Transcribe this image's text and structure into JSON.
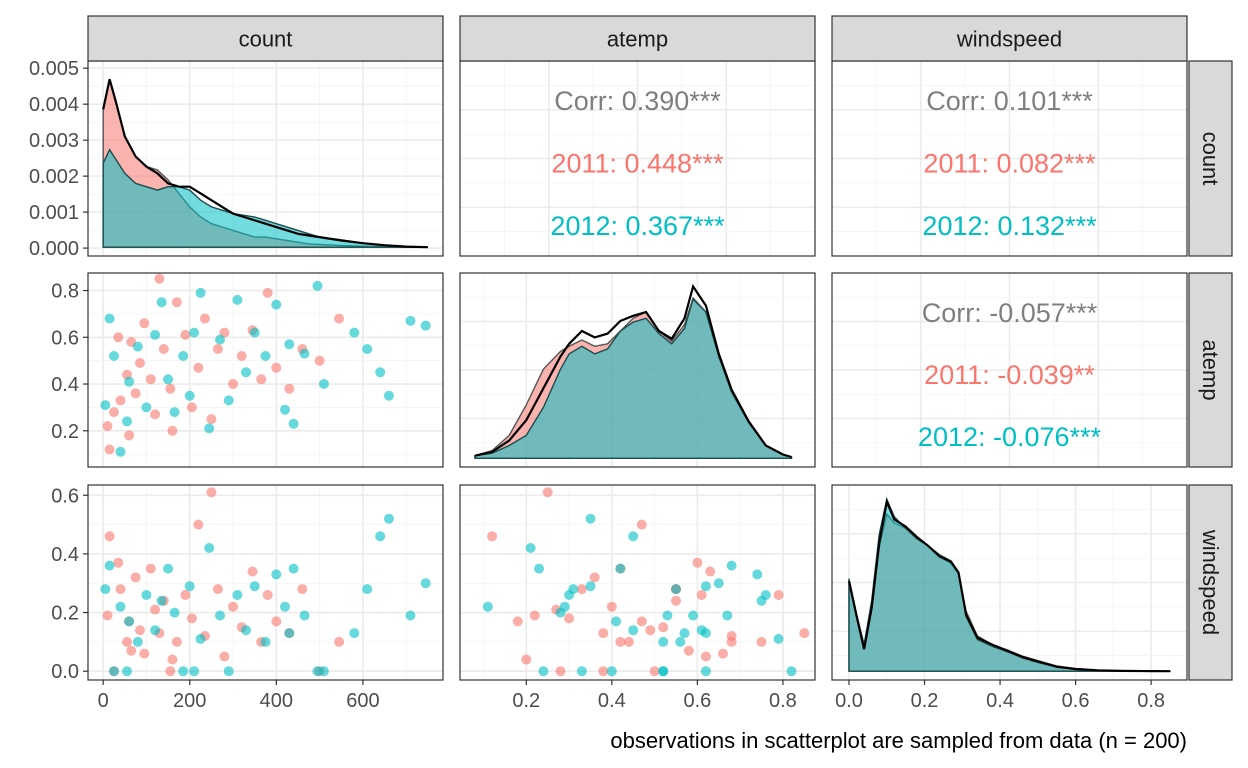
{
  "chart_data": {
    "type": "scatter",
    "caption": "observations in scatterplot are sampled from data (n = 200)",
    "variables": [
      "count",
      "atemp",
      "windspeed"
    ],
    "groups": [
      {
        "name": "2011",
        "color": "#F8766D"
      },
      {
        "name": "2012",
        "color": "#00BFC4"
      }
    ],
    "axes": {
      "count": {
        "range": [
          -35,
          785
        ],
        "ticks": [
          0,
          200,
          400,
          600
        ],
        "tick_labels": [
          "0",
          "200",
          "400",
          "600"
        ]
      },
      "atemp": {
        "range": [
          0.045,
          0.875
        ],
        "ticks": [
          0.2,
          0.4,
          0.6,
          0.8
        ],
        "tick_labels": [
          "0.2",
          "0.4",
          "0.6",
          "0.8"
        ]
      },
      "windspeed": {
        "range": [
          -0.03,
          0.635
        ],
        "ticks": [
          0.0,
          0.2,
          0.4,
          0.6
        ],
        "tick_labels": [
          "0.0",
          "0.2",
          "0.4",
          "0.6"
        ]
      },
      "windspeed_x": {
        "range": [
          -0.045,
          0.895
        ],
        "ticks": [
          0.0,
          0.2,
          0.4,
          0.6,
          0.8
        ],
        "tick_labels": [
          "0.0",
          "0.2",
          "0.4",
          "0.6",
          "0.8"
        ]
      },
      "count_density": {
        "range": [
          -0.00022,
          0.0052
        ],
        "ticks": [
          0,
          0.001,
          0.002,
          0.003,
          0.004,
          0.005
        ],
        "tick_labels": [
          "0.000",
          "0.001",
          "0.002",
          "0.003",
          "0.004",
          "0.005"
        ]
      }
    },
    "correlations": [
      {
        "pair": "count-atemp",
        "lines": [
          {
            "label": "Corr: 0.390***",
            "color": "#7f7f7f"
          },
          {
            "label": "2011: 0.448***",
            "color": "#F8766D"
          },
          {
            "label": "2012: 0.367***",
            "color": "#00BFC4"
          }
        ]
      },
      {
        "pair": "count-windspeed",
        "lines": [
          {
            "label": "Corr: 0.101***",
            "color": "#7f7f7f"
          },
          {
            "label": "2011: 0.082***",
            "color": "#F8766D"
          },
          {
            "label": "2012: 0.132***",
            "color": "#00BFC4"
          }
        ]
      },
      {
        "pair": "atemp-windspeed",
        "lines": [
          {
            "label": "Corr: -0.057***",
            "color": "#7f7f7f"
          },
          {
            "label": "2011: -0.039**",
            "color": "#F8766D"
          },
          {
            "label": "2012: -0.076***",
            "color": "#00BFC4"
          }
        ]
      }
    ],
    "densities": {
      "count": {
        "x": [
          0,
          15,
          30,
          50,
          75,
          100,
          125,
          150,
          175,
          200,
          225,
          250,
          275,
          300,
          325,
          350,
          375,
          400,
          425,
          450,
          475,
          500,
          550,
          600,
          650,
          700,
          750
        ],
        "2011": [
          0.0041,
          0.005,
          0.0043,
          0.0033,
          0.0027,
          0.0024,
          0.0023,
          0.002,
          0.0016,
          0.0012,
          0.0009,
          0.0007,
          0.0006,
          0.0005,
          0.0004,
          0.0003,
          0.0003,
          0.00025,
          0.0002,
          0.00015,
          0.0001,
          8e-05,
          5e-05,
          3e-05,
          2e-05,
          1e-05,
          0
        ],
        "2012": [
          0.0025,
          0.0029,
          0.0026,
          0.0022,
          0.0019,
          0.0018,
          0.0017,
          0.0018,
          0.0018,
          0.0017,
          0.0014,
          0.0012,
          0.0011,
          0.001,
          0.00095,
          0.0009,
          0.0008,
          0.0007,
          0.0006,
          0.0005,
          0.0004,
          0.0003,
          0.00022,
          0.00012,
          6e-05,
          2e-05,
          0
        ],
        "overall": [
          0.0041,
          0.005,
          0.0043,
          0.0033,
          0.0027,
          0.0024,
          0.0022,
          0.0019,
          0.0018,
          0.0018,
          0.0016,
          0.0014,
          0.0012,
          0.001,
          0.0009,
          0.0008,
          0.0007,
          0.0006,
          0.0005,
          0.0004,
          0.00035,
          0.0003,
          0.0002,
          0.00012,
          6e-05,
          2e-05,
          0
        ]
      },
      "atemp": {
        "x": [
          0.08,
          0.12,
          0.16,
          0.2,
          0.24,
          0.28,
          0.3,
          0.33,
          0.36,
          0.39,
          0.42,
          0.45,
          0.48,
          0.51,
          0.54,
          0.57,
          0.59,
          0.62,
          0.65,
          0.68,
          0.72,
          0.76,
          0.8,
          0.82
        ],
        "2011": [
          0.02,
          0.06,
          0.18,
          0.42,
          0.7,
          0.84,
          0.88,
          0.93,
          0.88,
          0.9,
          1.0,
          1.1,
          1.15,
          1.0,
          0.92,
          1.05,
          1.26,
          1.15,
          0.8,
          0.52,
          0.28,
          0.1,
          0.03,
          0.01
        ],
        "2012": [
          0.02,
          0.04,
          0.1,
          0.18,
          0.4,
          0.7,
          0.82,
          0.88,
          0.82,
          0.86,
          1.0,
          1.07,
          1.1,
          0.98,
          0.9,
          1.02,
          1.25,
          1.15,
          0.8,
          0.52,
          0.28,
          0.1,
          0.03,
          0.01
        ],
        "overall": [
          0.02,
          0.05,
          0.14,
          0.3,
          0.55,
          0.8,
          0.9,
          1.0,
          0.95,
          0.98,
          1.08,
          1.12,
          1.15,
          1.0,
          0.94,
          1.1,
          1.35,
          1.2,
          0.82,
          0.54,
          0.29,
          0.1,
          0.03,
          0.01
        ]
      },
      "windspeed": {
        "x": [
          0.0,
          0.02,
          0.04,
          0.06,
          0.08,
          0.1,
          0.12,
          0.15,
          0.18,
          0.21,
          0.24,
          0.27,
          0.29,
          0.31,
          0.34,
          0.38,
          0.42,
          0.46,
          0.5,
          0.55,
          0.6,
          0.66,
          0.72,
          0.8,
          0.85
        ],
        "2011": [
          1.0,
          0.62,
          0.3,
          0.7,
          1.4,
          1.78,
          1.68,
          1.62,
          1.52,
          1.42,
          1.3,
          1.22,
          1.1,
          0.68,
          0.4,
          0.3,
          0.24,
          0.17,
          0.12,
          0.06,
          0.03,
          0.01,
          0.005,
          0.002,
          0.0
        ],
        "2012": [
          1.05,
          0.65,
          0.3,
          0.8,
          1.55,
          1.95,
          1.75,
          1.62,
          1.5,
          1.42,
          1.32,
          1.25,
          1.12,
          0.62,
          0.36,
          0.28,
          0.22,
          0.15,
          0.1,
          0.05,
          0.02,
          0.008,
          0.004,
          0.001,
          0.0
        ],
        "overall": [
          1.02,
          0.63,
          0.25,
          0.72,
          1.45,
          1.92,
          1.72,
          1.64,
          1.52,
          1.42,
          1.3,
          1.24,
          1.12,
          0.64,
          0.38,
          0.3,
          0.23,
          0.16,
          0.11,
          0.05,
          0.025,
          0.01,
          0.004,
          0.001,
          0.0
        ]
      }
    },
    "points": [
      {
        "group": "2011",
        "count": 10,
        "atemp": 0.22,
        "windspeed": 0.19
      },
      {
        "group": "2011",
        "count": 25,
        "atemp": 0.28,
        "windspeed": 0.0
      },
      {
        "group": "2011",
        "count": 40,
        "atemp": 0.33,
        "windspeed": 0.28
      },
      {
        "group": "2011",
        "count": 55,
        "atemp": 0.44,
        "windspeed": 0.1
      },
      {
        "group": "2011",
        "count": 60,
        "atemp": 0.18,
        "windspeed": 0.17
      },
      {
        "group": "2011",
        "count": 75,
        "atemp": 0.36,
        "windspeed": 0.32
      },
      {
        "group": "2011",
        "count": 85,
        "atemp": 0.49,
        "windspeed": 0.14
      },
      {
        "group": "2011",
        "count": 95,
        "atemp": 0.66,
        "windspeed": 0.06
      },
      {
        "group": "2011",
        "count": 110,
        "atemp": 0.42,
        "windspeed": 0.35
      },
      {
        "group": "2011",
        "count": 120,
        "atemp": 0.27,
        "windspeed": 0.21
      },
      {
        "group": "2011",
        "count": 130,
        "atemp": 0.85,
        "windspeed": 0.13
      },
      {
        "group": "2011",
        "count": 140,
        "atemp": 0.55,
        "windspeed": 0.24
      },
      {
        "group": "2011",
        "count": 155,
        "atemp": 0.38,
        "windspeed": 0.0
      },
      {
        "group": "2011",
        "count": 170,
        "atemp": 0.75,
        "windspeed": 0.1
      },
      {
        "group": "2011",
        "count": 190,
        "atemp": 0.61,
        "windspeed": 0.26
      },
      {
        "group": "2011",
        "count": 205,
        "atemp": 0.3,
        "windspeed": 0.18
      },
      {
        "group": "2011",
        "count": 220,
        "atemp": 0.47,
        "windspeed": 0.5
      },
      {
        "group": "2011",
        "count": 235,
        "atemp": 0.68,
        "windspeed": 0.12
      },
      {
        "group": "2011",
        "count": 250,
        "atemp": 0.25,
        "windspeed": 0.61
      },
      {
        "group": "2011",
        "count": 265,
        "atemp": 0.55,
        "windspeed": 0.28
      },
      {
        "group": "2011",
        "count": 280,
        "atemp": 0.62,
        "windspeed": 0.05
      },
      {
        "group": "2011",
        "count": 300,
        "atemp": 0.4,
        "windspeed": 0.22
      },
      {
        "group": "2011",
        "count": 320,
        "atemp": 0.52,
        "windspeed": 0.15
      },
      {
        "group": "2011",
        "count": 345,
        "atemp": 0.63,
        "windspeed": 0.34
      },
      {
        "group": "2011",
        "count": 365,
        "atemp": 0.42,
        "windspeed": 0.1
      },
      {
        "group": "2011",
        "count": 380,
        "atemp": 0.79,
        "windspeed": 0.26
      },
      {
        "group": "2011",
        "count": 400,
        "atemp": 0.47,
        "windspeed": 0.17
      },
      {
        "group": "2011",
        "count": 430,
        "atemp": 0.38,
        "windspeed": 0.13
      },
      {
        "group": "2011",
        "count": 460,
        "atemp": 0.55,
        "windspeed": 0.28
      },
      {
        "group": "2011",
        "count": 500,
        "atemp": 0.5,
        "windspeed": 0.0
      },
      {
        "group": "2011",
        "count": 545,
        "atemp": 0.68,
        "windspeed": 0.1
      },
      {
        "group": "2011",
        "count": 15,
        "atemp": 0.12,
        "windspeed": 0.46
      },
      {
        "group": "2011",
        "count": 35,
        "atemp": 0.6,
        "windspeed": 0.37
      },
      {
        "group": "2011",
        "count": 65,
        "atemp": 0.58,
        "windspeed": 0.07
      },
      {
        "group": "2011",
        "count": 160,
        "atemp": 0.2,
        "windspeed": 0.04
      },
      {
        "group": "2012",
        "count": 5,
        "atemp": 0.31,
        "windspeed": 0.28
      },
      {
        "group": "2012",
        "count": 15,
        "atemp": 0.68,
        "windspeed": 0.36
      },
      {
        "group": "2012",
        "count": 25,
        "atemp": 0.52,
        "windspeed": 0.0
      },
      {
        "group": "2012",
        "count": 40,
        "atemp": 0.11,
        "windspeed": 0.22
      },
      {
        "group": "2012",
        "count": 60,
        "atemp": 0.41,
        "windspeed": 0.17
      },
      {
        "group": "2012",
        "count": 80,
        "atemp": 0.56,
        "windspeed": 0.1
      },
      {
        "group": "2012",
        "count": 100,
        "atemp": 0.3,
        "windspeed": 0.26
      },
      {
        "group": "2012",
        "count": 120,
        "atemp": 0.61,
        "windspeed": 0.14
      },
      {
        "group": "2012",
        "count": 135,
        "atemp": 0.75,
        "windspeed": 0.24
      },
      {
        "group": "2012",
        "count": 150,
        "atemp": 0.42,
        "windspeed": 0.35
      },
      {
        "group": "2012",
        "count": 165,
        "atemp": 0.28,
        "windspeed": 0.2
      },
      {
        "group": "2012",
        "count": 185,
        "atemp": 0.52,
        "windspeed": 0.0
      },
      {
        "group": "2012",
        "count": 200,
        "atemp": 0.35,
        "windspeed": 0.29
      },
      {
        "group": "2012",
        "count": 225,
        "atemp": 0.79,
        "windspeed": 0.11
      },
      {
        "group": "2012",
        "count": 245,
        "atemp": 0.21,
        "windspeed": 0.42
      },
      {
        "group": "2012",
        "count": 270,
        "atemp": 0.59,
        "windspeed": 0.19
      },
      {
        "group": "2012",
        "count": 290,
        "atemp": 0.33,
        "windspeed": 0.0
      },
      {
        "group": "2012",
        "count": 310,
        "atemp": 0.76,
        "windspeed": 0.26
      },
      {
        "group": "2012",
        "count": 330,
        "atemp": 0.45,
        "windspeed": 0.14
      },
      {
        "group": "2012",
        "count": 350,
        "atemp": 0.62,
        "windspeed": 0.29
      },
      {
        "group": "2012",
        "count": 375,
        "atemp": 0.52,
        "windspeed": 0.1
      },
      {
        "group": "2012",
        "count": 400,
        "atemp": 0.74,
        "windspeed": 0.33
      },
      {
        "group": "2012",
        "count": 420,
        "atemp": 0.29,
        "windspeed": 0.22
      },
      {
        "group": "2012",
        "count": 440,
        "atemp": 0.23,
        "windspeed": 0.35
      },
      {
        "group": "2012",
        "count": 465,
        "atemp": 0.53,
        "windspeed": 0.19
      },
      {
        "group": "2012",
        "count": 495,
        "atemp": 0.82,
        "windspeed": 0.0
      },
      {
        "group": "2012",
        "count": 510,
        "atemp": 0.4,
        "windspeed": 0.0
      },
      {
        "group": "2012",
        "count": 580,
        "atemp": 0.62,
        "windspeed": 0.13
      },
      {
        "group": "2012",
        "count": 610,
        "atemp": 0.55,
        "windspeed": 0.28
      },
      {
        "group": "2012",
        "count": 640,
        "atemp": 0.45,
        "windspeed": 0.46
      },
      {
        "group": "2012",
        "count": 660,
        "atemp": 0.35,
        "windspeed": 0.52
      },
      {
        "group": "2012",
        "count": 710,
        "atemp": 0.67,
        "windspeed": 0.19
      },
      {
        "group": "2012",
        "count": 745,
        "atemp": 0.65,
        "windspeed": 0.3
      },
      {
        "group": "2012",
        "count": 430,
        "atemp": 0.57,
        "windspeed": 0.13
      },
      {
        "group": "2012",
        "count": 55,
        "atemp": 0.24,
        "windspeed": 0.0
      },
      {
        "group": "2012",
        "count": 210,
        "atemp": 0.62,
        "windspeed": 0.0
      }
    ]
  }
}
